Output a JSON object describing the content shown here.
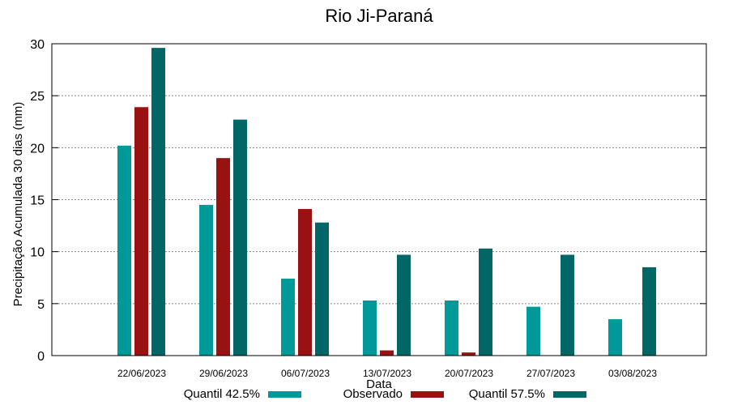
{
  "chart_data": {
    "type": "bar",
    "title": "Rio Ji-Paraná",
    "xlabel": "Data",
    "ylabel": "Precipitação Acumulada 30 dias (mm)",
    "ylim": [
      0,
      30
    ],
    "yticks": [
      0,
      5,
      10,
      15,
      20,
      25,
      30
    ],
    "grid": true,
    "legend_position": "bottom",
    "categories": [
      "22/06/2023",
      "29/06/2023",
      "06/07/2023",
      "13/07/2023",
      "20/07/2023",
      "27/07/2023",
      "03/08/2023"
    ],
    "series": [
      {
        "name": "Quantil 42.5%",
        "color": "#009999",
        "values": [
          20.2,
          14.5,
          7.4,
          5.3,
          5.3,
          4.7,
          3.5
        ]
      },
      {
        "name": "Observado",
        "color": "#991111",
        "values": [
          23.9,
          19.0,
          14.1,
          0.5,
          0.3,
          null,
          null
        ]
      },
      {
        "name": "Quantil 57.5%",
        "color": "#006666",
        "values": [
          29.6,
          22.7,
          12.8,
          9.7,
          10.3,
          9.7,
          8.5
        ]
      }
    ]
  }
}
